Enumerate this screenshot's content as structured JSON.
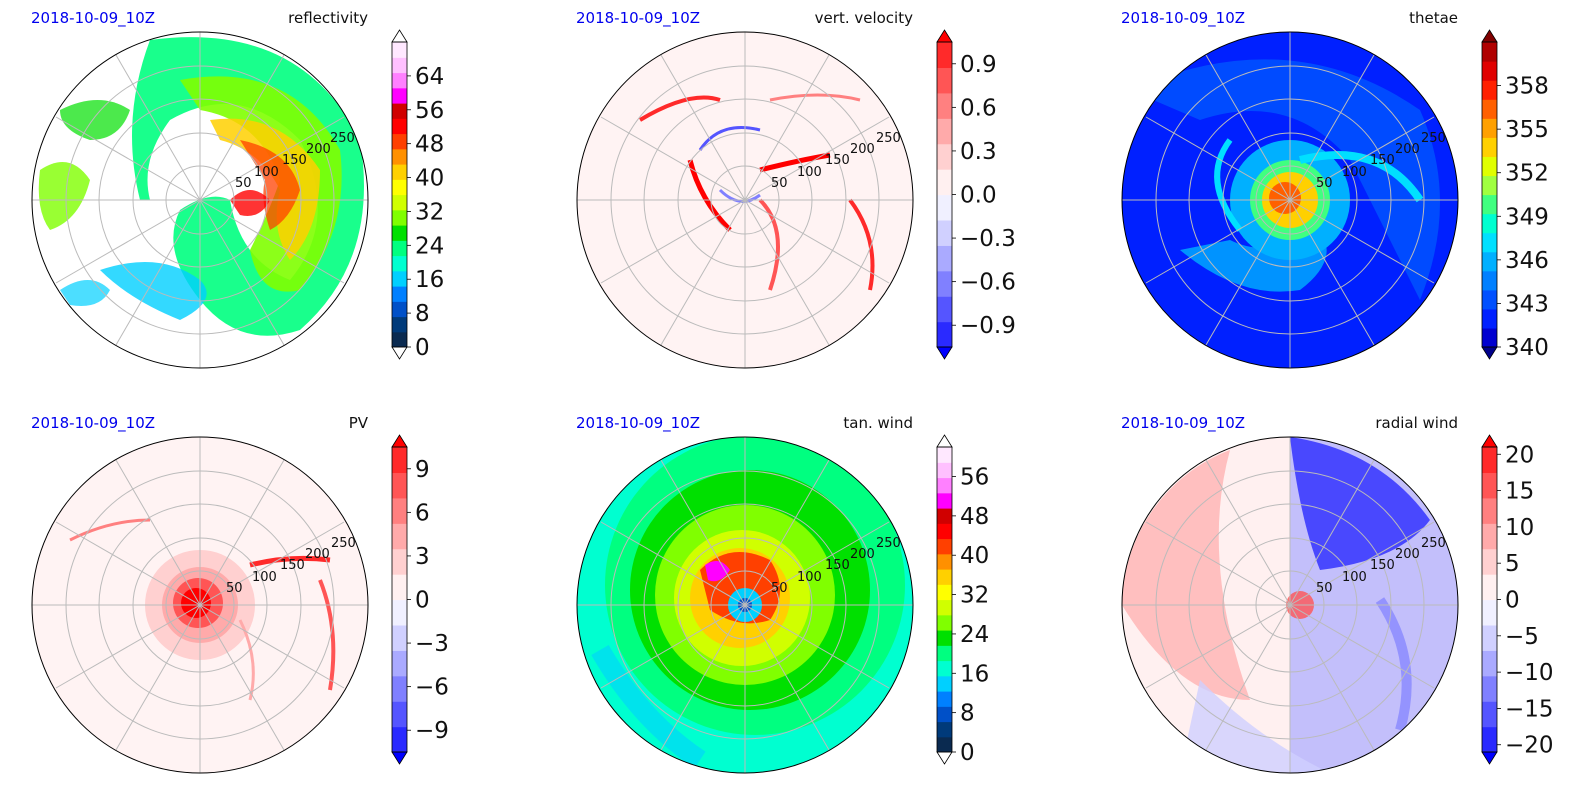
{
  "chart_data": [
    {
      "type": "heatmap",
      "date_label": "2018-10-09_10Z",
      "title": "reflectivity",
      "projection": "polar",
      "radial_ticks": [
        50,
        100,
        150,
        200,
        250
      ],
      "grid": true,
      "colorbar": {
        "ticks": [
          "0",
          "8",
          "16",
          "24",
          "32",
          "40",
          "48",
          "56",
          "64"
        ],
        "vmin": 0,
        "vmax": 72,
        "extend_min": true,
        "extend_max": true,
        "colors": [
          "#ffffff",
          "#0a2a50",
          "#003a7a",
          "#0050c8",
          "#0080ff",
          "#00d0ff",
          "#00ffd0",
          "#00ff80",
          "#00e000",
          "#80ff00",
          "#d0ff00",
          "#ffff00",
          "#ffd000",
          "#ff9000",
          "#ff4000",
          "#ff0000",
          "#d00000",
          "#ff00ff",
          "#ff80ff",
          "#ffc0ff",
          "#ffe8ff",
          "#ffffff"
        ]
      }
    },
    {
      "type": "heatmap",
      "date_label": "2018-10-09_10Z",
      "title": "vert. velocity",
      "projection": "polar",
      "radial_ticks": [
        50,
        100,
        150,
        200,
        250
      ],
      "grid": true,
      "colorbar": {
        "ticks": [
          "−0.9",
          "−0.6",
          "−0.3",
          "0.0",
          "0.3",
          "0.6",
          "0.9"
        ],
        "vmin": -1.05,
        "vmax": 1.05,
        "extend_min": true,
        "extend_max": true,
        "colors": [
          "#0000ff",
          "#2a2aff",
          "#5555ff",
          "#8080ff",
          "#aaaaff",
          "#d0d0ff",
          "#f0f0ff",
          "#fff0f0",
          "#ffd0d0",
          "#ffaaaa",
          "#ff8080",
          "#ff5555",
          "#ff2a2a",
          "#ff0000"
        ]
      }
    },
    {
      "type": "heatmap",
      "date_label": "2018-10-09_10Z",
      "title": "thetae",
      "projection": "polar",
      "radial_ticks": [
        50,
        100,
        150,
        200,
        250
      ],
      "grid": true,
      "colorbar": {
        "ticks": [
          "340",
          "343",
          "346",
          "349",
          "352",
          "355",
          "358"
        ],
        "vmin": 340,
        "vmax": 361,
        "extend_min": true,
        "extend_max": true,
        "colors": [
          "#00008b",
          "#0000d0",
          "#0020ff",
          "#0050ff",
          "#0080ff",
          "#00b0ff",
          "#00e0ff",
          "#00ffd0",
          "#40ff80",
          "#a0ff40",
          "#e0ff00",
          "#ffd000",
          "#ffa000",
          "#ff6000",
          "#ff2000",
          "#e00000",
          "#b00000",
          "#800000"
        ]
      }
    },
    {
      "type": "heatmap",
      "date_label": "2018-10-09_10Z",
      "title": "PV",
      "projection": "polar",
      "radial_ticks": [
        50,
        100,
        150,
        200,
        250
      ],
      "grid": true,
      "colorbar": {
        "ticks": [
          "−9",
          "−6",
          "−3",
          "0",
          "3",
          "6",
          "9"
        ],
        "vmin": -10.5,
        "vmax": 10.5,
        "extend_min": true,
        "extend_max": true,
        "colors": [
          "#0000ff",
          "#2a2aff",
          "#5555ff",
          "#8080ff",
          "#aaaaff",
          "#d0d0ff",
          "#f0f0ff",
          "#fff0f0",
          "#ffd0d0",
          "#ffaaaa",
          "#ff8080",
          "#ff5555",
          "#ff2a2a",
          "#ff0000"
        ]
      }
    },
    {
      "type": "heatmap",
      "date_label": "2018-10-09_10Z",
      "title": "tan. wind",
      "projection": "polar",
      "radial_ticks": [
        50,
        100,
        150,
        200,
        250
      ],
      "grid": true,
      "colorbar": {
        "ticks": [
          "0",
          "8",
          "16",
          "24",
          "32",
          "40",
          "48",
          "56"
        ],
        "vmin": 0,
        "vmax": 62,
        "extend_min": true,
        "extend_max": true,
        "colors": [
          "#ffffff",
          "#0a2a50",
          "#003a7a",
          "#0050c8",
          "#0080ff",
          "#00d0ff",
          "#00ffd0",
          "#00ff80",
          "#00e000",
          "#80ff00",
          "#d0ff00",
          "#ffff00",
          "#ffd000",
          "#ff9000",
          "#ff4000",
          "#ff0000",
          "#d00000",
          "#ff00ff",
          "#ff80ff",
          "#ffc0ff",
          "#ffe8ff",
          "#ffffff"
        ]
      }
    },
    {
      "type": "heatmap",
      "date_label": "2018-10-09_10Z",
      "title": "radial wind",
      "projection": "polar",
      "radial_ticks": [
        50,
        100,
        150,
        200,
        250
      ],
      "grid": true,
      "colorbar": {
        "ticks": [
          "−20",
          "−15",
          "−10",
          "−5",
          "0",
          "5",
          "10",
          "15",
          "20"
        ],
        "vmin": -21,
        "vmax": 21,
        "extend_min": true,
        "extend_max": true,
        "colors": [
          "#0000ff",
          "#2a2aff",
          "#5555ff",
          "#8080ff",
          "#aaaaff",
          "#d0d0ff",
          "#f0f0ff",
          "#fff0f0",
          "#ffd0d0",
          "#ffaaaa",
          "#ff8080",
          "#ff5555",
          "#ff2a2a",
          "#ff0000"
        ]
      }
    }
  ]
}
